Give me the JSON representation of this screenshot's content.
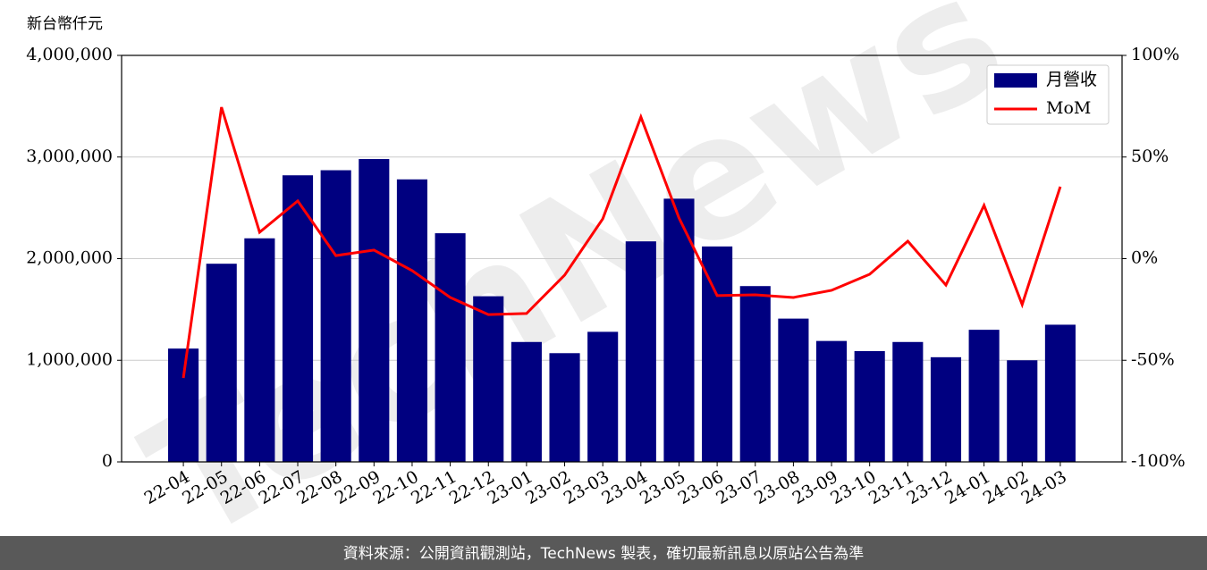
{
  "chart_data": {
    "type": "bar-line",
    "y_label": "新台幣仟元",
    "watermark": "TechNews",
    "footer": "資料來源：公開資訊觀測站，TechNews 製表，確切最新訊息以原站公告為準",
    "categories": [
      "22-04",
      "22-05",
      "22-06",
      "22-07",
      "22-08",
      "22-09",
      "22-10",
      "22-11",
      "22-12",
      "23-01",
      "23-02",
      "23-03",
      "23-04",
      "23-05",
      "23-06",
      "23-07",
      "23-08",
      "23-09",
      "23-10",
      "23-11",
      "23-12",
      "24-01",
      "24-02",
      "24-03"
    ],
    "series": [
      {
        "name": "月營收",
        "color": "#000080",
        "type": "bar",
        "values": [
          1115000,
          1950000,
          2200000,
          2820000,
          2870000,
          2980000,
          2780000,
          2250000,
          1630000,
          1180000,
          1070000,
          1280000,
          2170000,
          2590000,
          2120000,
          1730000,
          1410000,
          1190000,
          1090000,
          1180000,
          1030000,
          1300000,
          1000000,
          1350000
        ]
      },
      {
        "name": "MoM",
        "color": "#ff0000",
        "type": "line",
        "axis": "y2",
        "values": [
          -58.7,
          74.5,
          13.0,
          28.4,
          1.5,
          4.2,
          -5.9,
          -19.1,
          -27.5,
          -27.0,
          -8.1,
          19.6,
          69.7,
          20.0,
          -18.2,
          -17.8,
          -19.1,
          -15.6,
          -7.7,
          8.6,
          -13.0,
          26.2,
          -22.6,
          35.4
        ]
      }
    ],
    "ylim": [
      0,
      4000000
    ],
    "yticks": [
      {
        "value": 0,
        "label": "0"
      },
      {
        "value": 1000000,
        "label": "1,000,000"
      },
      {
        "value": 2000000,
        "label": "2,000,000"
      },
      {
        "value": 3000000,
        "label": "3,000,000"
      },
      {
        "value": 4000000,
        "label": "4,000,000"
      }
    ],
    "y2lim": [
      -100,
      100
    ],
    "y2ticks": [
      {
        "value": -100,
        "label": "-100%"
      },
      {
        "value": -50,
        "label": "-50%"
      },
      {
        "value": 0,
        "label": "0%"
      },
      {
        "value": 50,
        "label": "50%"
      },
      {
        "value": 100,
        "label": "100%"
      }
    ],
    "grid": true,
    "legend": "upper right"
  }
}
